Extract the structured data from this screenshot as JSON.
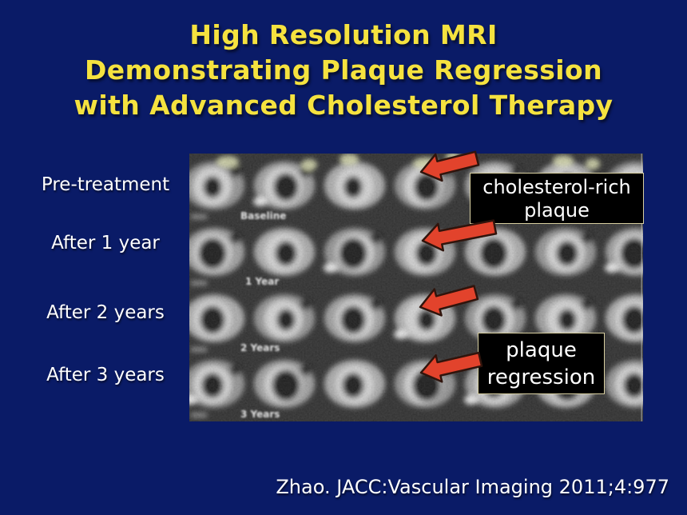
{
  "title": {
    "lines": [
      "High Resolution MRI",
      "Demonstrating Plaque Regression",
      "with Advanced Cholesterol Therapy"
    ]
  },
  "row_labels": [
    "Pre-treatment",
    "After 1 year",
    "After 2 years",
    "After 3 years"
  ],
  "callouts": {
    "cholesterol": {
      "line1": "cholesterol-rich",
      "line2": "plaque"
    },
    "regression": {
      "line1": "plaque",
      "line2": "regression"
    }
  },
  "mri": {
    "frame_labels": [
      "Baseline",
      "1 Year",
      "2 Years",
      "3 Years"
    ]
  },
  "citation": "Zhao. JACC:Vascular Imaging 2011;4:977",
  "colors": {
    "background": "#0a1b67",
    "title_text": "#f5e23f",
    "label_text": "#ffffff",
    "arrow": "#e2432c",
    "callout_bg": "#000000",
    "callout_border": "#d8cfa0",
    "callout_text": "#ffffff"
  }
}
